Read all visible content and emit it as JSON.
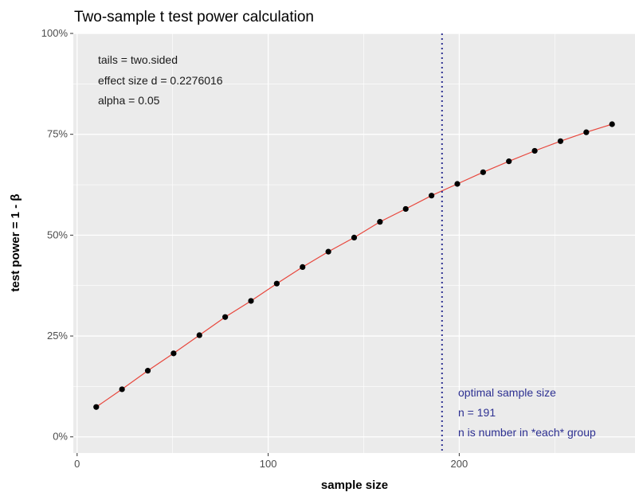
{
  "chart_data": {
    "type": "line",
    "title": "Two-sample t test power calculation",
    "xlabel": "sample size",
    "ylabel": "test power = 1 - β",
    "xlim": [
      -2,
      292
    ],
    "ylim": [
      -0.04,
      1.0
    ],
    "x_ticks": [
      0,
      100,
      200
    ],
    "x_tick_labels": [
      "0",
      "100",
      "200"
    ],
    "y_ticks": [
      0,
      0.25,
      0.5,
      0.75,
      1.0
    ],
    "y_tick_labels": [
      "0%",
      "25%",
      "50%",
      "75%",
      "100%"
    ],
    "grid": true,
    "line_color": "#e8463c",
    "point_color": "#000000",
    "vline_color": "#2e3192",
    "panel_color": "#ebebeb",
    "series": [
      {
        "x": [
          10,
          23.5,
          37,
          50.5,
          64,
          77.5,
          91,
          104.5,
          118,
          131.5,
          145,
          158.5,
          172,
          185.5,
          199,
          212.5,
          226,
          239.5,
          253,
          266.5,
          280
        ],
        "y": [
          0.074,
          0.118,
          0.164,
          0.207,
          0.252,
          0.297,
          0.337,
          0.38,
          0.421,
          0.459,
          0.494,
          0.533,
          0.565,
          0.598,
          0.627,
          0.656,
          0.683,
          0.709,
          0.733,
          0.755,
          0.775
        ]
      }
    ],
    "vline": {
      "x": 191,
      "style": "dotted"
    },
    "annotations": {
      "params": [
        "tails = two.sided",
        "effect size d = 0.2276016",
        "alpha = 0.05"
      ],
      "optimal": [
        "optimal sample size",
        "n = 191",
        "n is number in *each* group"
      ]
    }
  }
}
